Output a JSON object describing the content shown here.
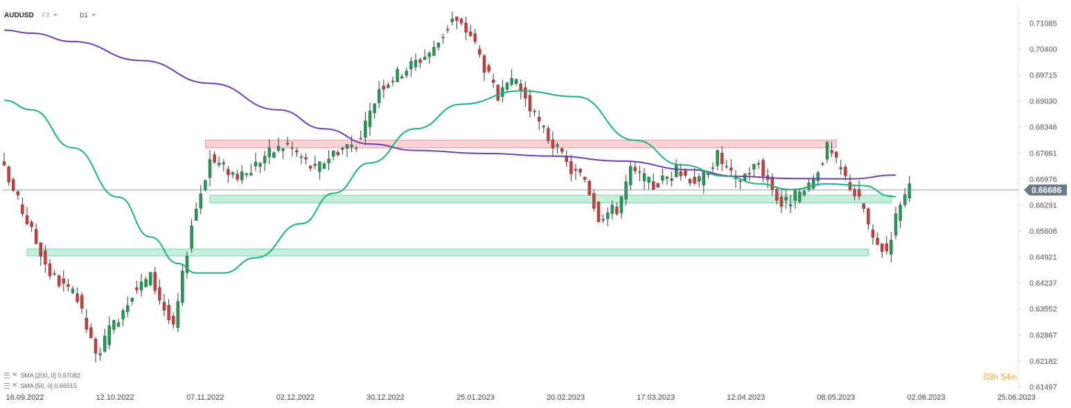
{
  "header": {
    "symbol": "AUDUSD",
    "market": "FX",
    "timeframe": "D1"
  },
  "indicators": [
    {
      "label": "SMA [200, 0] 0.67082",
      "color": "#6a3fb5"
    },
    {
      "label": "SMA [50, 0] 0.66515",
      "color": "#19b37a"
    }
  ],
  "countdown": {
    "hours": "03",
    "hours_unit": "h",
    "minutes": "54",
    "minutes_unit": "m"
  },
  "chart_data": {
    "type": "candlestick",
    "y_ticks": [
      "0.71085",
      "0.70400",
      "0.69715",
      "0.69030",
      "0.68346",
      "0.67661",
      "0.66976",
      "0.66291",
      "0.65606",
      "0.64921",
      "0.64237",
      "0.63552",
      "0.62867",
      "0.62182",
      "0.61497"
    ],
    "x_ticks": [
      "16.09.2022",
      "12.10.2022",
      "07.11.2022",
      "02.12.2022",
      "30.12.2022",
      "25.01.2023",
      "20.02.2023",
      "17.03.2023",
      "12.04.2023",
      "08.05.2023",
      "02.06.2023",
      "25.06.2023"
    ],
    "ylim": [
      0.6145,
      0.7155
    ],
    "current_price": {
      "value": 0.66686,
      "label": "0.66686"
    },
    "zones": [
      {
        "from": 0.678,
        "to": 0.68,
        "start_index": 44,
        "end_index": 182,
        "color": "#f0a0a0"
      },
      {
        "from": 0.6635,
        "to": 0.6655,
        "start_index": 45,
        "end_index": 194,
        "color": "#7fd9b4"
      },
      {
        "from": 0.6495,
        "to": 0.6513,
        "start_index": 5,
        "end_index": 189,
        "color": "#7fd9b4"
      }
    ],
    "series": [
      {
        "name": "SMA [200, 0]",
        "color": "#6a3fb5",
        "points": [
          [
            0,
            0.709
          ],
          [
            6,
            0.7082
          ],
          [
            15,
            0.706
          ],
          [
            30,
            0.701
          ],
          [
            45,
            0.695
          ],
          [
            60,
            0.688
          ],
          [
            70,
            0.683
          ],
          [
            80,
            0.679
          ],
          [
            90,
            0.6773
          ],
          [
            105,
            0.6765
          ],
          [
            120,
            0.6758
          ],
          [
            135,
            0.6745
          ],
          [
            150,
            0.6722
          ],
          [
            160,
            0.6705
          ],
          [
            172,
            0.6699
          ],
          [
            185,
            0.6698
          ],
          [
            195,
            0.6708
          ]
        ]
      },
      {
        "name": "SMA [50, 0]",
        "color": "#19b37a",
        "points": [
          [
            0,
            0.6905
          ],
          [
            6,
            0.688
          ],
          [
            15,
            0.678
          ],
          [
            25,
            0.665
          ],
          [
            32,
            0.6545
          ],
          [
            38,
            0.6475
          ],
          [
            42,
            0.645
          ],
          [
            48,
            0.645
          ],
          [
            55,
            0.649
          ],
          [
            65,
            0.658
          ],
          [
            72,
            0.666
          ],
          [
            80,
            0.674
          ],
          [
            90,
            0.683
          ],
          [
            100,
            0.6895
          ],
          [
            113,
            0.693
          ],
          [
            125,
            0.6915
          ],
          [
            138,
            0.68
          ],
          [
            148,
            0.6735
          ],
          [
            158,
            0.6705
          ],
          [
            165,
            0.6685
          ],
          [
            172,
            0.667
          ],
          [
            180,
            0.6685
          ],
          [
            188,
            0.668
          ],
          [
            194,
            0.6652
          ],
          [
            195,
            0.6651
          ]
        ]
      }
    ],
    "candles": {
      "start_date": "16.09.2022",
      "note_count": 196,
      "anchor_closes": [
        [
          0,
          0.672
        ],
        [
          6,
          0.656
        ],
        [
          10,
          0.645
        ],
        [
          16,
          0.638
        ],
        [
          20,
          0.623
        ],
        [
          28,
          0.64
        ],
        [
          32,
          0.644
        ],
        [
          37,
          0.63
        ],
        [
          41,
          0.658
        ],
        [
          45,
          0.675
        ],
        [
          52,
          0.67
        ],
        [
          57,
          0.676
        ],
        [
          62,
          0.679
        ],
        [
          68,
          0.672
        ],
        [
          72,
          0.677
        ],
        [
          78,
          0.68
        ],
        [
          82,
          0.694
        ],
        [
          88,
          0.699
        ],
        [
          94,
          0.704
        ],
        [
          98,
          0.712
        ],
        [
          102,
          0.708
        ],
        [
          108,
          0.691
        ],
        [
          112,
          0.696
        ],
        [
          116,
          0.686
        ],
        [
          120,
          0.679
        ],
        [
          124,
          0.672
        ],
        [
          127,
          0.67
        ],
        [
          130,
          0.66
        ],
        [
          134,
          0.662
        ],
        [
          137,
          0.672
        ],
        [
          142,
          0.668
        ],
        [
          147,
          0.672
        ],
        [
          152,
          0.669
        ],
        [
          156,
          0.676
        ],
        [
          160,
          0.669
        ],
        [
          165,
          0.674
        ],
        [
          170,
          0.663
        ],
        [
          176,
          0.667
        ],
        [
          180,
          0.678
        ],
        [
          184,
          0.67
        ],
        [
          188,
          0.662
        ],
        [
          190,
          0.653
        ],
        [
          193,
          0.651
        ],
        [
          196,
          0.664
        ],
        [
          198,
          0.6669
        ]
      ]
    }
  }
}
